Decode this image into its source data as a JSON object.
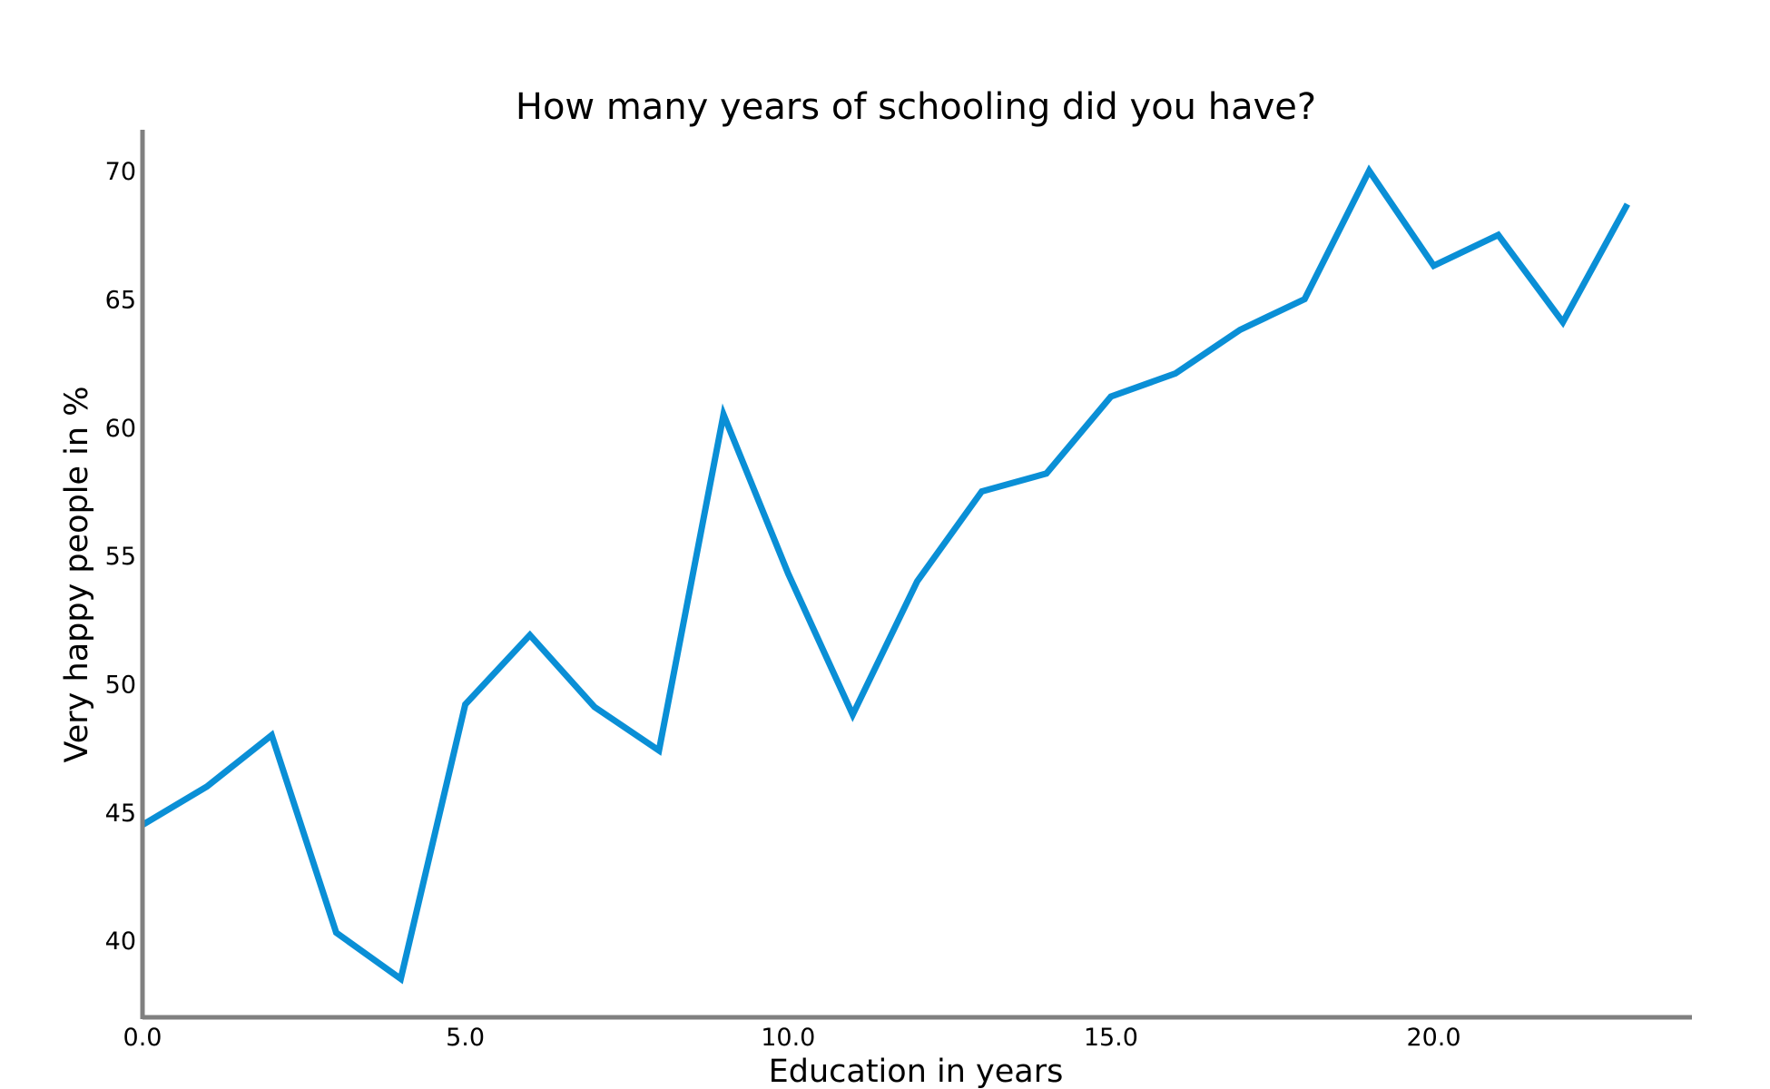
{
  "chart_data": {
    "type": "line",
    "title": "How many years of schooling did you have?",
    "xlabel": "Education in years",
    "ylabel": "Very happy people in %",
    "xlim": [
      0,
      24
    ],
    "ylim": [
      37,
      71.6
    ],
    "xticks": [
      0,
      5,
      10,
      15,
      20
    ],
    "xtick_labels": [
      "0.0",
      "5.0",
      "10.0",
      "15.0",
      "20.0"
    ],
    "yticks": [
      40,
      45,
      50,
      55,
      60,
      65,
      70
    ],
    "ytick_labels": [
      "40",
      "45",
      "50",
      "55",
      "60",
      "65",
      "70"
    ],
    "grid": false,
    "legend": "none",
    "series": [
      {
        "color": "#0a8fd6",
        "x": [
          0,
          1,
          2,
          3,
          4,
          5,
          6,
          7,
          8,
          9,
          10,
          11,
          12,
          13,
          14,
          15,
          16,
          17,
          18,
          19,
          20,
          21,
          22,
          23
        ],
        "values": [
          44.5,
          46.0,
          48.0,
          40.3,
          38.5,
          49.2,
          51.9,
          49.1,
          47.4,
          60.5,
          54.3,
          48.8,
          54.0,
          57.5,
          58.2,
          61.2,
          62.1,
          63.8,
          65.0,
          70.0,
          66.3,
          67.5,
          64.1,
          68.7
        ]
      }
    ]
  }
}
